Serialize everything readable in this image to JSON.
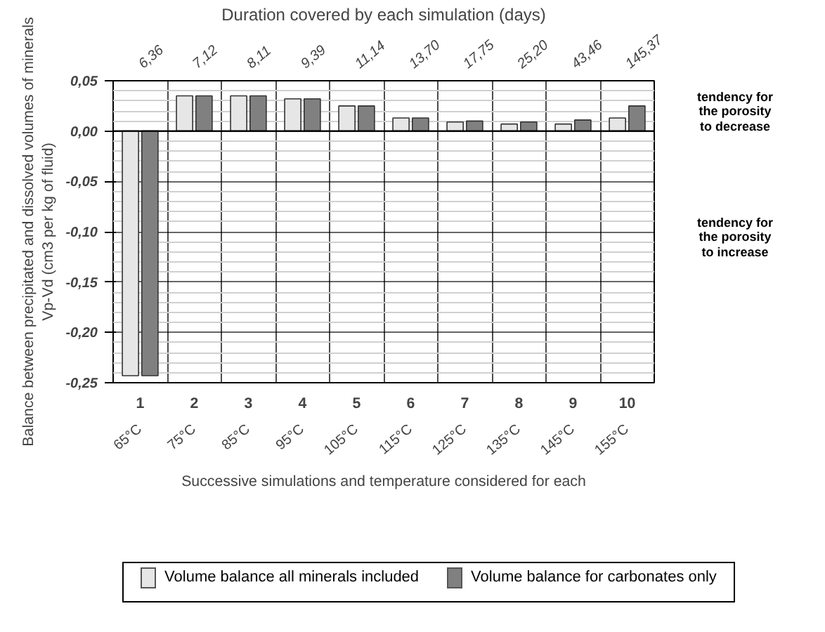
{
  "chart_data": {
    "type": "bar",
    "title": "Duration covered by each simulation (days)",
    "xlabel": "Successive simulations and temperature considered for each",
    "ylabel": "Balance between precipitated and dissolved volumes of minerals\nVp-Vd (cm3 per kg of fluid)",
    "categories": [
      "1",
      "2",
      "3",
      "4",
      "5",
      "6",
      "7",
      "8",
      "9",
      "10"
    ],
    "series": [
      {
        "name": "Volume balance all minerals included",
        "color": "#e6e6e6",
        "values": [
          -0.243,
          0.035,
          0.035,
          0.032,
          0.025,
          0.013,
          0.009,
          0.007,
          0.007,
          0.013
        ]
      },
      {
        "name": "Volume balance for carbonates only",
        "color": "#808080",
        "values": [
          -0.243,
          0.035,
          0.035,
          0.032,
          0.025,
          0.013,
          0.01,
          0.009,
          0.011,
          0.025
        ]
      }
    ],
    "ylim": [
      -0.25,
      0.05
    ],
    "yticks": [
      {
        "value": 0.05,
        "label": "0,05"
      },
      {
        "value": 0,
        "label": "0,00"
      },
      {
        "value": -0.05,
        "label": "-0,05"
      },
      {
        "value": -0.1,
        "label": "-0,10"
      },
      {
        "value": -0.15,
        "label": "-0,15"
      },
      {
        "value": -0.2,
        "label": "-0,20"
      },
      {
        "value": -0.25,
        "label": "-0,25"
      }
    ],
    "annotations": [
      "6,36",
      "7,12",
      "8,11",
      "9,39",
      "11,14",
      "13,70",
      "17,75",
      "25,20",
      "43,46",
      "145,37",
      "65°C",
      "75°C",
      "85°C",
      "95°C",
      "105°C",
      "115°C",
      "125°C",
      "135°C",
      "145°C",
      "155°C",
      "tendency for\nthe porosity\nto decrease",
      "tendency for\nthe porosity\nto increase"
    ],
    "ref_lines": [
      {
        "axis": "y",
        "value": 0
      }
    ],
    "grid": true,
    "legend": "bottom"
  }
}
